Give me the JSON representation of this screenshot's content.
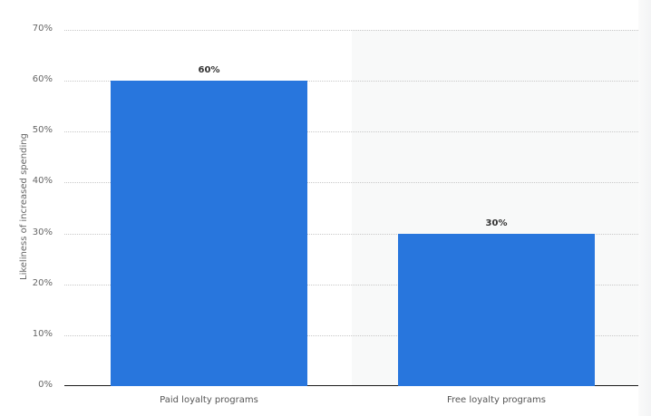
{
  "chart_data": {
    "type": "bar",
    "title": "",
    "xlabel": "",
    "ylabel": "Likeliness of increased spending",
    "categories": [
      "Paid loyalty programs",
      "Free loyalty programs"
    ],
    "values": [
      60,
      30
    ],
    "value_labels": [
      "60%",
      "30%"
    ],
    "ylim": [
      0,
      70
    ],
    "yticks": [
      "0%",
      "10%",
      "20%",
      "30%",
      "40%",
      "50%",
      "60%",
      "70%"
    ],
    "grid": true,
    "legend": null,
    "bar_color": "#2876dd"
  }
}
